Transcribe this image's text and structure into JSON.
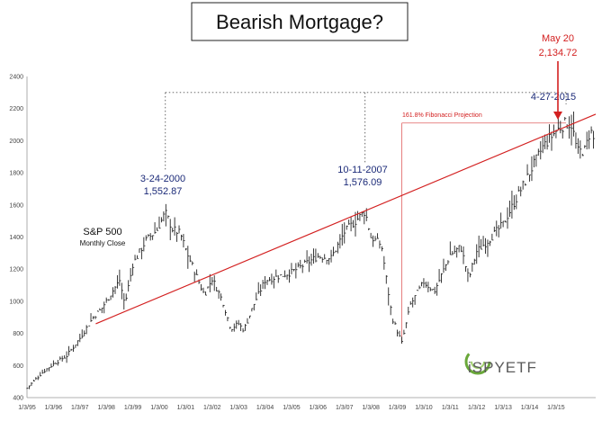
{
  "chart_data": {
    "type": "line",
    "title": "Bearish Mortgage?",
    "series_label": "S&P 500",
    "series_sublabel": "Monthly Close",
    "ylim": [
      400,
      2400
    ],
    "y_ticks": [
      "400",
      "600",
      "800",
      "1000",
      "1200",
      "1400",
      "1600",
      "1800",
      "2000",
      "2200",
      "2400"
    ],
    "x_ticks": [
      "1/3/95",
      "1/3/96",
      "1/3/97",
      "1/3/98",
      "1/3/99",
      "1/3/00",
      "1/3/01",
      "1/3/02",
      "1/3/03",
      "1/3/04",
      "1/3/05",
      "1/3/06",
      "1/3/07",
      "1/3/08",
      "1/3/09",
      "1/3/10",
      "1/3/11",
      "1/3/12",
      "1/3/13",
      "1/3/14",
      "1/3/15"
    ],
    "x_range_years": [
      1995.0,
      2016.5
    ],
    "price_anchors": [
      {
        "year": 1995.0,
        "value": 460
      },
      {
        "year": 1995.6,
        "value": 560
      },
      {
        "year": 1996.0,
        "value": 610
      },
      {
        "year": 1996.5,
        "value": 660
      },
      {
        "year": 1997.0,
        "value": 770
      },
      {
        "year": 1997.5,
        "value": 900
      },
      {
        "year": 1997.8,
        "value": 950
      },
      {
        "year": 1998.5,
        "value": 1130
      },
      {
        "year": 1998.7,
        "value": 980
      },
      {
        "year": 1999.0,
        "value": 1230
      },
      {
        "year": 1999.5,
        "value": 1380
      },
      {
        "year": 1999.9,
        "value": 1440
      },
      {
        "year": 2000.23,
        "value": 1552
      },
      {
        "year": 2000.5,
        "value": 1450
      },
      {
        "year": 2000.8,
        "value": 1420
      },
      {
        "year": 2001.0,
        "value": 1320
      },
      {
        "year": 2001.3,
        "value": 1200
      },
      {
        "year": 2001.7,
        "value": 1040
      },
      {
        "year": 2002.0,
        "value": 1140
      },
      {
        "year": 2002.4,
        "value": 1000
      },
      {
        "year": 2002.7,
        "value": 830
      },
      {
        "year": 2003.0,
        "value": 860
      },
      {
        "year": 2003.2,
        "value": 820
      },
      {
        "year": 2003.6,
        "value": 990
      },
      {
        "year": 2004.0,
        "value": 1130
      },
      {
        "year": 2005.0,
        "value": 1180
      },
      {
        "year": 2006.0,
        "value": 1280
      },
      {
        "year": 2006.5,
        "value": 1270
      },
      {
        "year": 2007.0,
        "value": 1430
      },
      {
        "year": 2007.78,
        "value": 1560
      },
      {
        "year": 2008.0,
        "value": 1400
      },
      {
        "year": 2008.4,
        "value": 1350
      },
      {
        "year": 2008.8,
        "value": 900
      },
      {
        "year": 2009.17,
        "value": 740
      },
      {
        "year": 2009.5,
        "value": 980
      },
      {
        "year": 2010.0,
        "value": 1120
      },
      {
        "year": 2010.4,
        "value": 1060
      },
      {
        "year": 2011.0,
        "value": 1290
      },
      {
        "year": 2011.4,
        "value": 1340
      },
      {
        "year": 2011.7,
        "value": 1140
      },
      {
        "year": 2012.0,
        "value": 1310
      },
      {
        "year": 2012.5,
        "value": 1390
      },
      {
        "year": 2013.0,
        "value": 1480
      },
      {
        "year": 2013.5,
        "value": 1640
      },
      {
        "year": 2014.0,
        "value": 1800
      },
      {
        "year": 2014.5,
        "value": 1960
      },
      {
        "year": 2015.0,
        "value": 2060
      },
      {
        "year": 2015.38,
        "value": 2110
      },
      {
        "year": 2015.6,
        "value": 2100
      },
      {
        "year": 2015.8,
        "value": 1930
      },
      {
        "year": 2016.1,
        "value": 1940
      },
      {
        "year": 2016.3,
        "value": 2070
      },
      {
        "year": 2016.45,
        "value": 1990
      }
    ],
    "trendline": {
      "start": {
        "year": 1997.6,
        "value": 860
      },
      "end": {
        "year": 2016.5,
        "value": 2165
      }
    },
    "fib_bracket": {
      "start_year": 2009.17,
      "end_year": 2015.38,
      "level": 2110,
      "label": "161.8% Fibonacci Projection"
    },
    "dotted_connector": {
      "years": [
        2000.23,
        2007.78,
        2015.38
      ],
      "level": 2300
    },
    "annotations": [
      {
        "id": "peak-2000",
        "date_label": "3-24-2000",
        "value_label": "1,552.87",
        "color": "#1b2a78"
      },
      {
        "id": "peak-2007",
        "date_label": "10-11-2007",
        "value_label": "1,576.09",
        "color": "#1b2a78"
      },
      {
        "id": "peak-2015",
        "date_label": "4-27-2015",
        "color": "#1b2a78"
      },
      {
        "id": "high-may20",
        "date_label": "May 20",
        "value_label": "2,134.72",
        "color": "#d32020"
      }
    ],
    "legend": "none",
    "grid": false
  },
  "branding": {
    "logo_text": "iSPYETF",
    "logo_colors": {
      "accent": "#6aa83a",
      "text": "#5a5a5a"
    }
  },
  "colors": {
    "price": "#222222",
    "trendline": "#d32020",
    "fib": "#e06060",
    "connector": "#555555",
    "axis": "#999999"
  }
}
